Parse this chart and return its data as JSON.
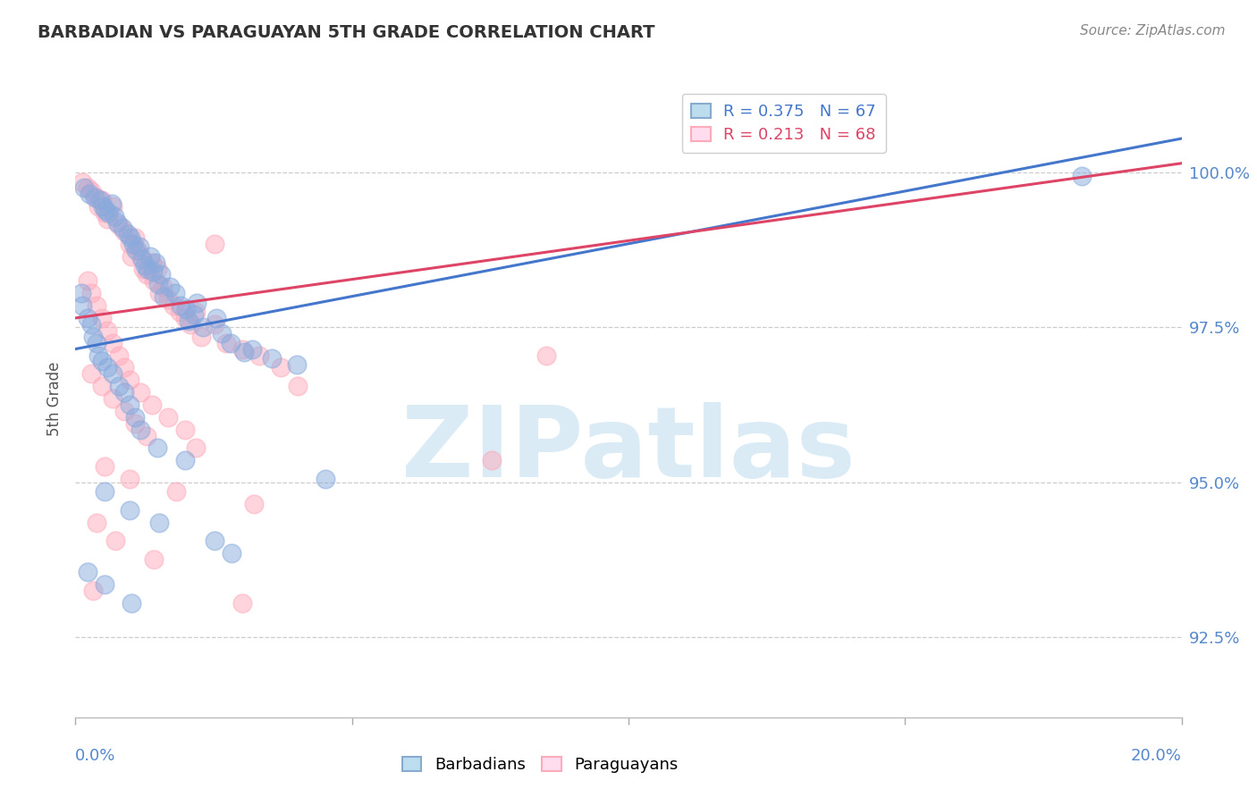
{
  "title": "BARBADIAN VS PARAGUAYAN 5TH GRADE CORRELATION CHART",
  "source": "Source: ZipAtlas.com",
  "ylabel": "5th Grade",
  "xlim": [
    0.0,
    20.0
  ],
  "ylim": [
    91.2,
    101.5
  ],
  "yticks": [
    92.5,
    95.0,
    97.5,
    100.0
  ],
  "ytick_labels": [
    "92.5%",
    "95.0%",
    "97.5%",
    "100.0%"
  ],
  "legend_blue_label": "R = 0.375   N = 67",
  "legend_pink_label": "R = 0.213   N = 68",
  "barbadian_label": "Barbadians",
  "paraguayan_label": "Paraguayans",
  "blue_color": "#88aadd",
  "pink_color": "#ffaabb",
  "blue_line_color": "#4477cc",
  "pink_line_color": "#dd4466",
  "blue_scatter": [
    [
      0.15,
      99.75
    ],
    [
      0.25,
      99.65
    ],
    [
      0.35,
      99.6
    ],
    [
      0.45,
      99.55
    ],
    [
      0.5,
      99.45
    ],
    [
      0.55,
      99.4
    ],
    [
      0.6,
      99.35
    ],
    [
      0.65,
      99.5
    ],
    [
      0.7,
      99.3
    ],
    [
      0.75,
      99.2
    ],
    [
      0.85,
      99.1
    ],
    [
      0.95,
      99.0
    ],
    [
      1.0,
      98.95
    ],
    [
      1.05,
      98.85
    ],
    [
      1.1,
      98.75
    ],
    [
      1.15,
      98.8
    ],
    [
      1.2,
      98.6
    ],
    [
      1.25,
      98.5
    ],
    [
      1.3,
      98.45
    ],
    [
      1.35,
      98.65
    ],
    [
      1.4,
      98.4
    ],
    [
      1.45,
      98.55
    ],
    [
      1.5,
      98.2
    ],
    [
      1.55,
      98.35
    ],
    [
      1.6,
      98.0
    ],
    [
      1.7,
      98.15
    ],
    [
      1.8,
      98.05
    ],
    [
      1.9,
      97.85
    ],
    [
      2.0,
      97.8
    ],
    [
      2.05,
      97.6
    ],
    [
      2.15,
      97.7
    ],
    [
      2.2,
      97.9
    ],
    [
      2.3,
      97.5
    ],
    [
      2.55,
      97.65
    ],
    [
      2.65,
      97.4
    ],
    [
      2.8,
      97.25
    ],
    [
      3.05,
      97.1
    ],
    [
      3.2,
      97.15
    ],
    [
      3.55,
      97.0
    ],
    [
      4.0,
      96.9
    ],
    [
      0.1,
      98.05
    ],
    [
      0.12,
      97.85
    ],
    [
      0.22,
      97.65
    ],
    [
      0.28,
      97.55
    ],
    [
      0.32,
      97.35
    ],
    [
      0.38,
      97.25
    ],
    [
      0.42,
      97.05
    ],
    [
      0.48,
      96.95
    ],
    [
      0.58,
      96.85
    ],
    [
      0.68,
      96.75
    ],
    [
      0.78,
      96.55
    ],
    [
      0.88,
      96.45
    ],
    [
      0.98,
      96.25
    ],
    [
      1.08,
      96.05
    ],
    [
      1.18,
      95.85
    ],
    [
      1.48,
      95.55
    ],
    [
      1.98,
      95.35
    ],
    [
      0.52,
      94.85
    ],
    [
      0.98,
      94.55
    ],
    [
      1.52,
      94.35
    ],
    [
      2.52,
      94.05
    ],
    [
      2.82,
      93.85
    ],
    [
      0.22,
      93.55
    ],
    [
      0.52,
      93.35
    ],
    [
      1.02,
      93.05
    ],
    [
      4.52,
      95.05
    ],
    [
      18.2,
      99.95
    ]
  ],
  "paraguayan_scatter": [
    [
      0.12,
      99.85
    ],
    [
      0.22,
      99.75
    ],
    [
      0.28,
      99.7
    ],
    [
      0.38,
      99.6
    ],
    [
      0.42,
      99.45
    ],
    [
      0.48,
      99.55
    ],
    [
      0.52,
      99.35
    ],
    [
      0.58,
      99.25
    ],
    [
      0.68,
      99.45
    ],
    [
      0.78,
      99.15
    ],
    [
      0.88,
      99.05
    ],
    [
      0.98,
      98.85
    ],
    [
      1.02,
      98.65
    ],
    [
      1.08,
      98.95
    ],
    [
      1.12,
      98.75
    ],
    [
      1.18,
      98.65
    ],
    [
      1.22,
      98.45
    ],
    [
      1.28,
      98.35
    ],
    [
      1.38,
      98.55
    ],
    [
      1.42,
      98.25
    ],
    [
      1.48,
      98.45
    ],
    [
      1.52,
      98.05
    ],
    [
      1.58,
      98.15
    ],
    [
      1.68,
      97.95
    ],
    [
      1.78,
      97.85
    ],
    [
      1.88,
      97.75
    ],
    [
      1.98,
      97.65
    ],
    [
      2.08,
      97.55
    ],
    [
      2.18,
      97.75
    ],
    [
      2.28,
      97.35
    ],
    [
      2.52,
      97.55
    ],
    [
      2.72,
      97.25
    ],
    [
      3.02,
      97.15
    ],
    [
      3.32,
      97.05
    ],
    [
      3.72,
      96.85
    ],
    [
      0.22,
      98.25
    ],
    [
      0.28,
      98.05
    ],
    [
      0.38,
      97.85
    ],
    [
      0.48,
      97.65
    ],
    [
      0.58,
      97.45
    ],
    [
      0.68,
      97.25
    ],
    [
      0.78,
      97.05
    ],
    [
      0.88,
      96.85
    ],
    [
      0.98,
      96.65
    ],
    [
      1.18,
      96.45
    ],
    [
      1.38,
      96.25
    ],
    [
      1.68,
      96.05
    ],
    [
      1.98,
      95.85
    ],
    [
      0.28,
      96.75
    ],
    [
      0.48,
      96.55
    ],
    [
      0.68,
      96.35
    ],
    [
      0.88,
      96.15
    ],
    [
      1.08,
      95.95
    ],
    [
      1.28,
      95.75
    ],
    [
      2.18,
      95.55
    ],
    [
      0.52,
      95.25
    ],
    [
      0.98,
      95.05
    ],
    [
      1.82,
      94.85
    ],
    [
      3.22,
      94.65
    ],
    [
      0.38,
      94.35
    ],
    [
      0.72,
      94.05
    ],
    [
      1.42,
      93.75
    ],
    [
      0.32,
      93.25
    ],
    [
      3.02,
      93.05
    ],
    [
      4.02,
      96.55
    ],
    [
      7.52,
      95.35
    ],
    [
      2.52,
      98.85
    ],
    [
      8.52,
      97.05
    ]
  ],
  "blue_trend": [
    0.0,
    97.15,
    20.0,
    100.55
  ],
  "pink_trend": [
    0.0,
    97.65,
    20.0,
    100.15
  ],
  "watermark_text": "ZIPatlas",
  "watermark_color": "#d4e8f5",
  "background_color": "#ffffff",
  "grid_color": "#cccccc",
  "tick_color_blue": "#5588cc",
  "title_color": "#333333",
  "source_color": "#888888",
  "ylabel_color": "#555555"
}
